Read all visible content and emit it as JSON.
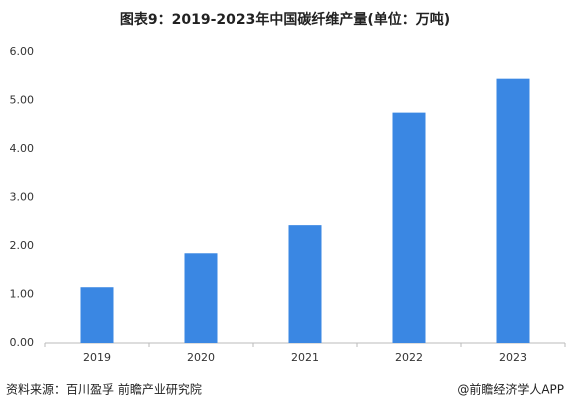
{
  "chart_data": {
    "type": "bar",
    "title": "图表9：2019-2023年中国碳纤维产量(单位：万吨)",
    "categories": [
      "2019",
      "2020",
      "2021",
      "2022",
      "2023"
    ],
    "values": [
      1.15,
      1.85,
      2.43,
      4.75,
      5.45
    ],
    "color": "#3a87e3",
    "ylim": [
      0,
      6
    ],
    "yticks": [
      {
        "value": 0,
        "label": "0.00"
      },
      {
        "value": 1,
        "label": "1.00"
      },
      {
        "value": 2,
        "label": "2.00"
      },
      {
        "value": 3,
        "label": "3.00"
      },
      {
        "value": 4,
        "label": "4.00"
      },
      {
        "value": 5,
        "label": "5.00"
      },
      {
        "value": 6,
        "label": "6.00"
      }
    ],
    "grid": false
  },
  "footer": {
    "source": "资料来源：百川盈孚 前瞻产业研究院",
    "brand": "@前瞻经济学人APP"
  }
}
